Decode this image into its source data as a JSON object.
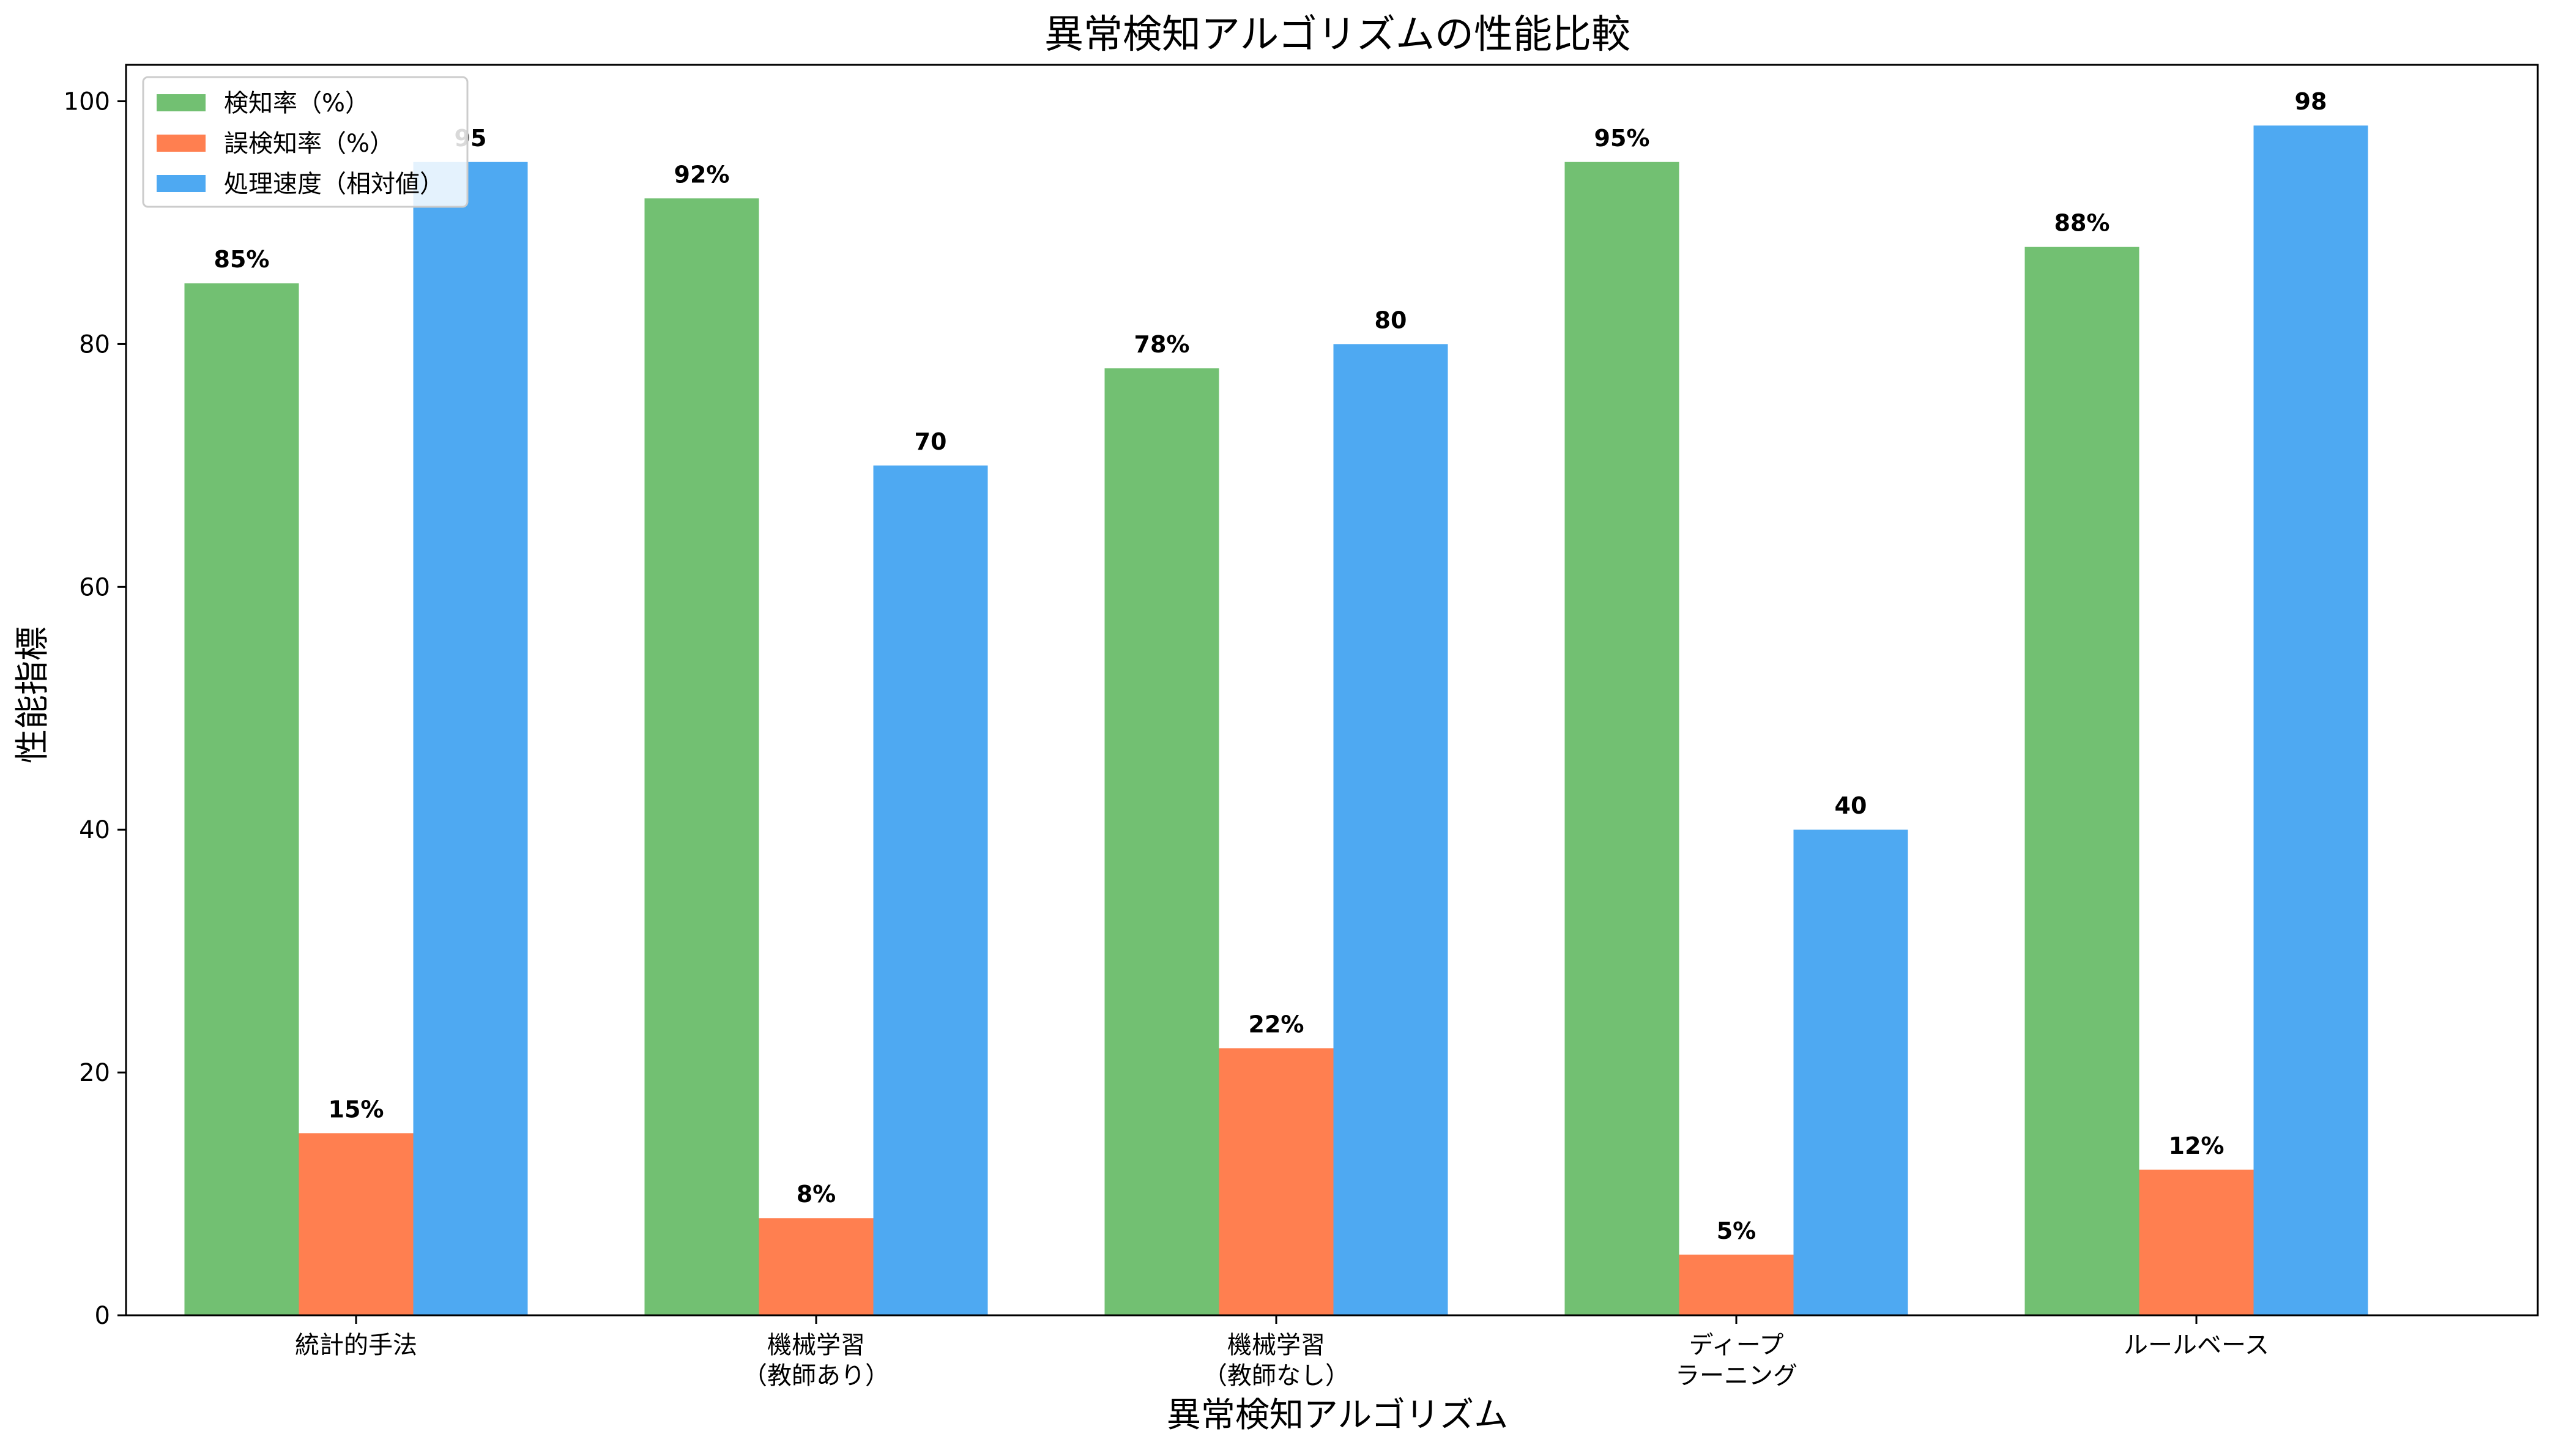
{
  "chart_data": {
    "type": "bar",
    "title": "異常検知アルゴリズムの性能比較",
    "xlabel": "異常検知アルゴリズム",
    "ylabel": "性能指標",
    "categories": [
      [
        "統計的手法"
      ],
      [
        "機械学習",
        "（教師あり）"
      ],
      [
        "機械学習",
        "（教師なし）"
      ],
      [
        "ディープ",
        "ラーニング"
      ],
      [
        "ルールベース"
      ]
    ],
    "series": [
      {
        "name": "検知率（%）",
        "color": "#72c072",
        "values": [
          85,
          92,
          78,
          95,
          88
        ],
        "labels": [
          "85%",
          "92%",
          "78%",
          "95%",
          "88%"
        ]
      },
      {
        "name": "誤検知率（%）",
        "color": "#ff7f50",
        "values": [
          15,
          8,
          22,
          5,
          12
        ],
        "labels": [
          "15%",
          "8%",
          "22%",
          "5%",
          "12%"
        ]
      },
      {
        "name": "処理速度（相対値）",
        "color": "#4ea9f2",
        "values": [
          95,
          70,
          80,
          40,
          98
        ],
        "labels": [
          "95",
          "70",
          "80",
          "40",
          "98"
        ]
      }
    ],
    "ylim": [
      0,
      103
    ],
    "yticks": [
      0,
      20,
      40,
      60,
      80,
      100
    ],
    "grid": false,
    "legend_position": "top-left"
  }
}
